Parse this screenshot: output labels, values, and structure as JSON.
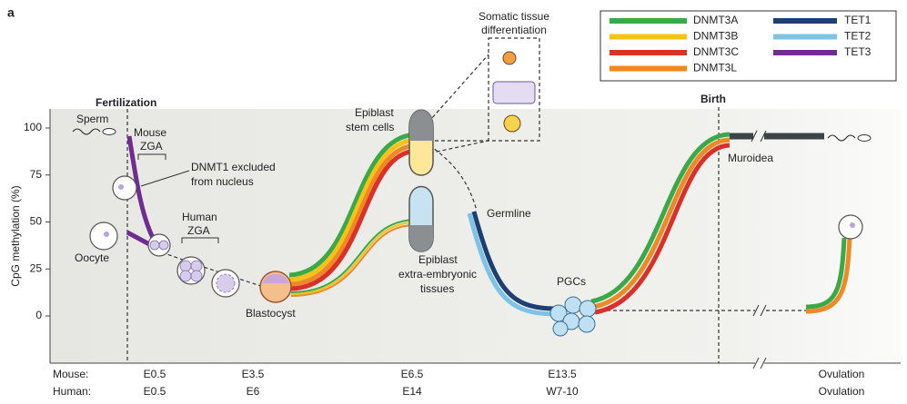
{
  "panel_label": "a",
  "y_axis": {
    "label": "CpG methylation (%)",
    "ticks": [
      0,
      25,
      50,
      75,
      100
    ]
  },
  "x_axis": {
    "rows": [
      {
        "label": "Mouse:",
        "stages": [
          "E0.5",
          "E3.5",
          "E6.5",
          "E13.5",
          "Ovulation"
        ]
      },
      {
        "label": "Human:",
        "stages": [
          "E0.5",
          "E6",
          "E14",
          "W7-10",
          "Ovulation"
        ]
      }
    ]
  },
  "events": {
    "fertilization": "Fertilization",
    "birth": "Birth"
  },
  "annotations": {
    "sperm": "Sperm",
    "mouse_zga": [
      "Mouse",
      "ZGA"
    ],
    "dnmt1": [
      "DNMT1 excluded",
      "from nucleus"
    ],
    "oocyte": "Oocyte",
    "human_zga": [
      "Human",
      "ZGA"
    ],
    "blastocyst": "Blastocyst",
    "epiblast_stem": [
      "Epiblast",
      "stem cells"
    ],
    "epiblast_extra": [
      "Epiblast",
      "extra-embryonic",
      "tissues"
    ],
    "somatic": [
      "Somatic tissue",
      "differentiation"
    ],
    "germline": "Germline",
    "pgcs": "PGCs",
    "muroidea": "Muroidea"
  },
  "legend": [
    {
      "label": "DNMT3A",
      "color": "#3aa948"
    },
    {
      "label": "DNMT3B",
      "color": "#f6c21a"
    },
    {
      "label": "DNMT3C",
      "color": "#d9302a"
    },
    {
      "label": "DNMT3L",
      "color": "#ee8a25"
    },
    {
      "label": "TET1",
      "color": "#1d3f73"
    },
    {
      "label": "TET2",
      "color": "#7ec3e3"
    },
    {
      "label": "TET3",
      "color": "#6f2c91"
    }
  ]
}
